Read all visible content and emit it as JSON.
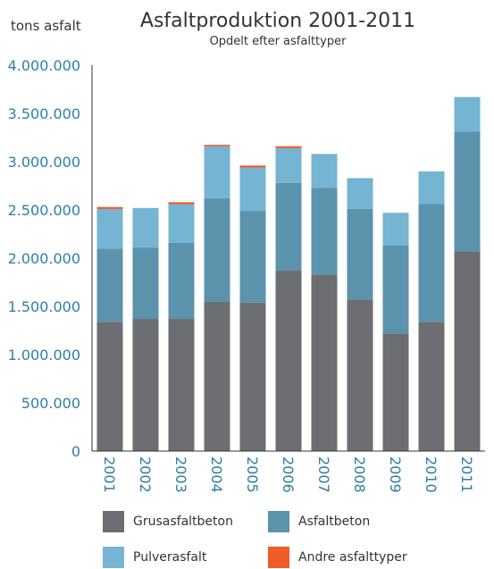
{
  "chart_data": {
    "type": "bar",
    "stacked": true,
    "title": "Asfaltproduktion 2001-2011",
    "subtitle": "Opdelt efter asfalttyper",
    "ylabel": "tons asfalt",
    "xlabel": "",
    "ylim": [
      0,
      4000000
    ],
    "yticks": [
      "0",
      "500.000",
      "1.000.000",
      "1.500.000",
      "2.000.000",
      "2.500.000",
      "3.000.000",
      "3.500.000",
      "4.000.000"
    ],
    "categories": [
      "2001",
      "2002",
      "2003",
      "2004",
      "2005",
      "2006",
      "2007",
      "2008",
      "2009",
      "2010",
      "2011"
    ],
    "series": [
      {
        "name": "Grusasfaltbeton",
        "color": "#6d6e71",
        "values": [
          1340000,
          1370000,
          1370000,
          1550000,
          1540000,
          1870000,
          1830000,
          1570000,
          1220000,
          1340000,
          2070000
        ]
      },
      {
        "name": "Asfaltbeton",
        "color": "#5b93ad",
        "values": [
          760000,
          740000,
          790000,
          1070000,
          950000,
          910000,
          900000,
          940000,
          910000,
          1220000,
          1240000
        ]
      },
      {
        "name": "Pulverasfalt",
        "color": "#75b4d2",
        "values": [
          410000,
          410000,
          400000,
          540000,
          450000,
          360000,
          350000,
          320000,
          340000,
          340000,
          360000
        ]
      },
      {
        "name": "Andre asfalttyper",
        "color": "#f15a29",
        "values": [
          20000,
          0,
          20000,
          15000,
          20000,
          20000,
          0,
          0,
          0,
          0,
          0
        ]
      }
    ],
    "legend_position": "bottom",
    "grid": false
  }
}
